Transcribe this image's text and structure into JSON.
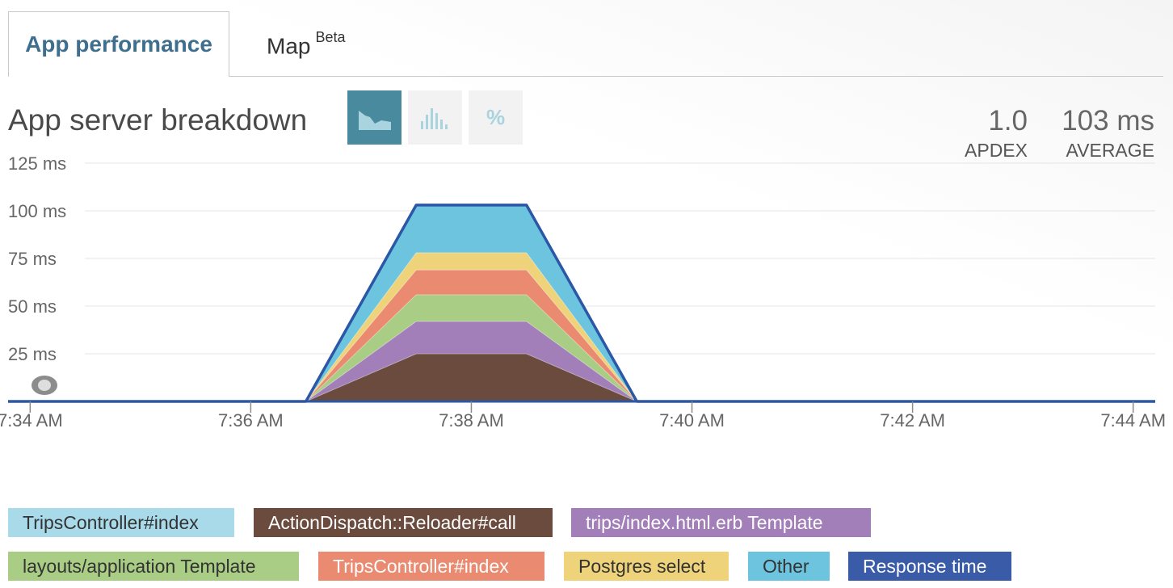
{
  "tabs": [
    {
      "label": "App performance",
      "active": true
    },
    {
      "label": "Map",
      "badge": "Beta",
      "active": false
    }
  ],
  "section": {
    "title": "App server breakdown",
    "view_buttons": [
      {
        "name": "area-chart-icon",
        "active": true
      },
      {
        "name": "histogram-icon",
        "active": false
      },
      {
        "name": "percent-icon",
        "label": "%",
        "active": false
      }
    ]
  },
  "metrics": [
    {
      "value": "1.0",
      "label": "APDEX"
    },
    {
      "value": "103 ms",
      "label": "AVERAGE"
    }
  ],
  "colors": {
    "accent": "#3f6f8f",
    "button_active": "#4a8a9e",
    "response_line": "#2b57a6"
  },
  "chart_data": {
    "type": "area",
    "stacked": true,
    "y_ticks": [
      "125 ms",
      "100 ms",
      "75 ms",
      "50 ms",
      "25 ms"
    ],
    "ylim": [
      0,
      125
    ],
    "x_ticks": [
      "7:34 AM",
      "7:36 AM",
      "7:38 AM",
      "7:40 AM",
      "7:42 AM",
      "7:44 AM"
    ],
    "x_tick_minutes": [
      0,
      2,
      4,
      6,
      8,
      10
    ],
    "xlim_minutes": [
      -0.2,
      10.2
    ],
    "x_minutes": [
      -0.2,
      2.5,
      3.5,
      4.5,
      5.5,
      10.2
    ],
    "series": [
      {
        "name": "ActionDispatch::Reloader#call",
        "color": "#6a4b3e",
        "values": [
          0,
          0,
          25,
          25,
          0,
          0
        ]
      },
      {
        "name": "trips/index.html.erb Template",
        "color": "#a27fb8",
        "values": [
          0,
          0,
          17,
          17,
          0,
          0
        ]
      },
      {
        "name": "layouts/application Template",
        "color": "#a9cd84",
        "values": [
          0,
          0,
          14,
          14,
          0,
          0
        ]
      },
      {
        "name": "TripsController#index",
        "color": "#ea8a70",
        "values": [
          0,
          0,
          13,
          13,
          0,
          0
        ]
      },
      {
        "name": "Postgres select",
        "color": "#eed37a",
        "values": [
          0,
          0,
          9,
          9,
          0,
          0
        ]
      },
      {
        "name": "Other",
        "color": "#6cc4de",
        "values": [
          0,
          0,
          25,
          25,
          0,
          0
        ]
      }
    ],
    "line": {
      "name": "Response time",
      "color": "#2b57a6",
      "values": [
        0,
        0,
        103,
        103,
        0,
        0
      ]
    },
    "grid": true,
    "legend_position": "bottom",
    "legend": [
      {
        "label": "TripsController#index",
        "bg": "#a8daea",
        "fg": "#333333"
      },
      {
        "label": "ActionDispatch::Reloader#call",
        "bg": "#6a4b3e",
        "fg": "#ffffff"
      },
      {
        "label": "trips/index.html.erb Template",
        "bg": "#a27fb8",
        "fg": "#ffffff"
      },
      {
        "label": "layouts/application Template",
        "bg": "#a9cd84",
        "fg": "#333333"
      },
      {
        "label": "TripsController#index",
        "bg": "#ea8a70",
        "fg": "#ffffff"
      },
      {
        "label": "Postgres select",
        "bg": "#eed37a",
        "fg": "#333333"
      },
      {
        "label": "Other",
        "bg": "#6cc4de",
        "fg": "#333333"
      },
      {
        "label": "Response time",
        "bg": "#3a5ca8",
        "fg": "#ffffff"
      }
    ]
  }
}
